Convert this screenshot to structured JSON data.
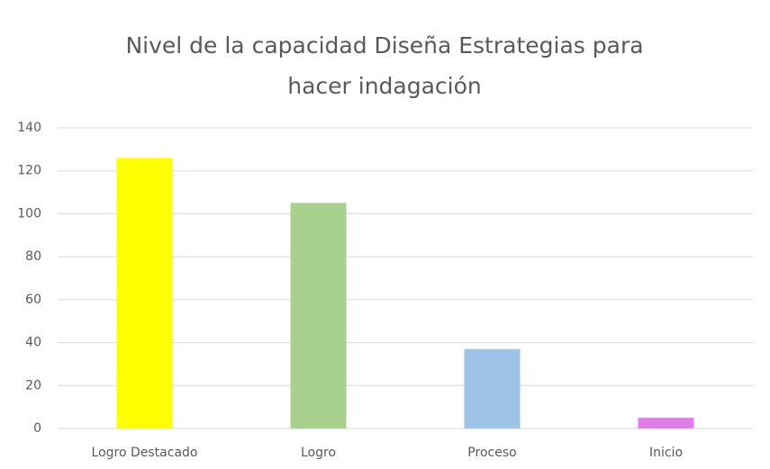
{
  "chart_data": {
    "type": "bar",
    "title": "Nivel de la capacidad Diseña Estrategias para hacer indagación",
    "categories": [
      "Logro Destacado",
      "Logro",
      "Proceso",
      "Inicio"
    ],
    "values": [
      126,
      105,
      37,
      5
    ],
    "colors": [
      "#ffff00",
      "#a9d18e",
      "#9dc3e6",
      "#e07ee8"
    ],
    "ylim": [
      0,
      140
    ],
    "yticks": [
      0,
      20,
      40,
      60,
      80,
      100,
      120,
      140
    ],
    "grid": true
  }
}
